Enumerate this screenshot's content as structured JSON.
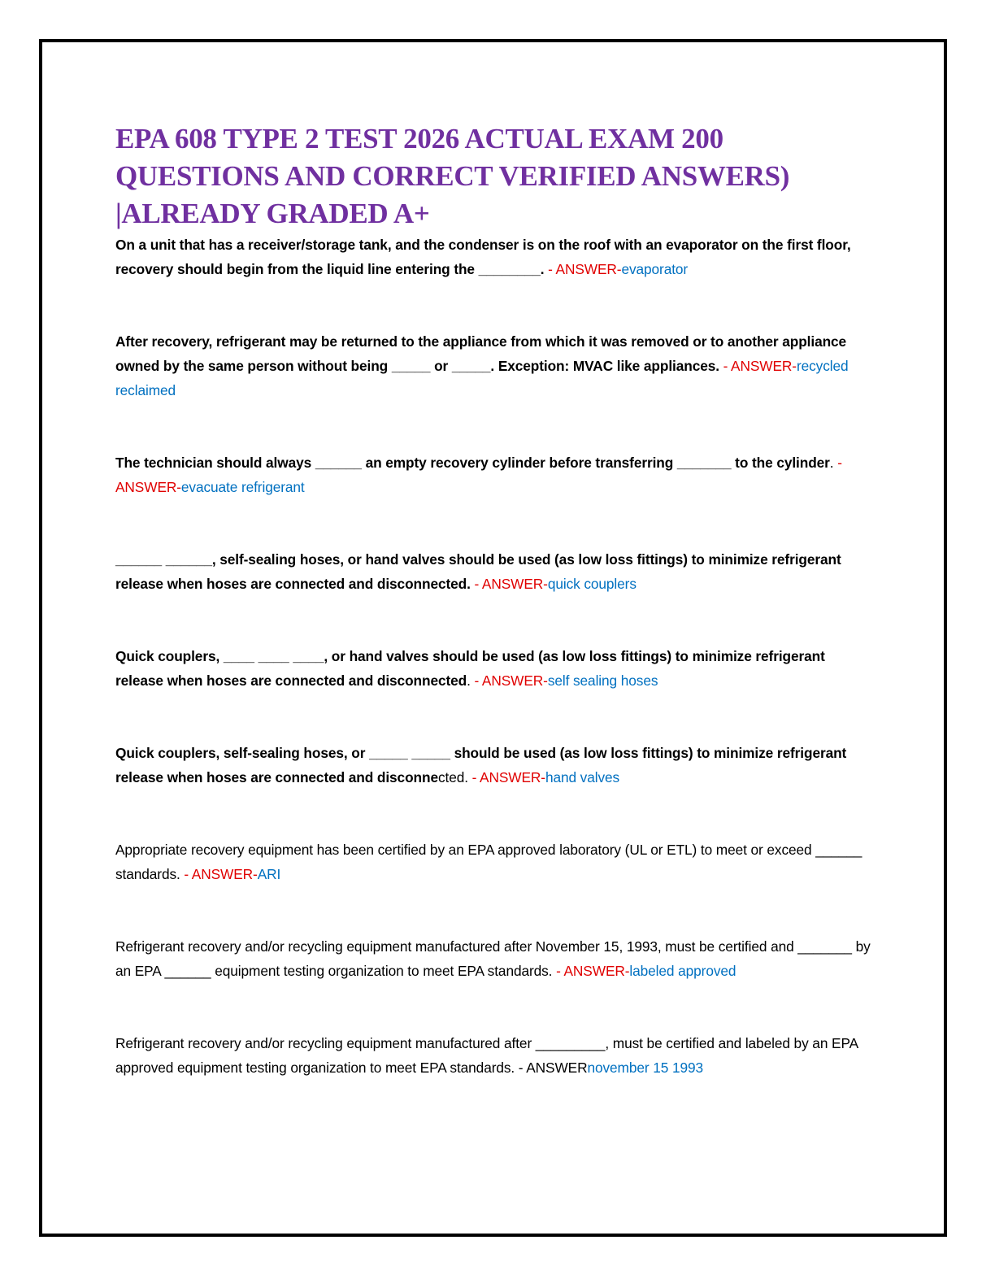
{
  "header": {
    "title_lines": [
      "EPA 608 TYPE 2 TEST 2026 ACTUAL EXAM 200",
      "QUESTIONS AND CORRECT VERIFIED ANSWERS)",
      "|ALREADY GRADED A+"
    ]
  },
  "questions": [
    {
      "segments": [
        {
          "style": "bold",
          "text": "On a unit that has a receiver/storage tank, and the condenser is on the roof with an evaporator on the first floor, recovery should begin from the liquid line entering the ________."
        },
        {
          "style": "marker",
          "text": " - ANSWER-"
        },
        {
          "style": "answer",
          "text": "evaporator"
        }
      ]
    },
    {
      "segments": [
        {
          "style": "bold",
          "text": "After recovery, refrigerant may be returned to the appliance from which it was removed or to another appliance owned by the same person without being _____ or _____. Exception: MVAC like appliances."
        },
        {
          "style": "marker",
          "text": " - ANSWER-"
        },
        {
          "style": "answer",
          "text": "recycled reclaimed"
        }
      ]
    },
    {
      "segments": [
        {
          "style": "bold",
          "text": "The technician should always ______ an empty recovery cylinder before transferring _______ to the cylinder"
        },
        {
          "style": "plain",
          "text": "."
        },
        {
          "style": "marker",
          "text": " - ANSWER-"
        },
        {
          "style": "answer",
          "text": "evacuate refrigerant"
        }
      ]
    },
    {
      "segments": [
        {
          "style": "bold",
          "text": "______ ______, self-sealing hoses, or hand valves should be used (as low loss fittings) to minimize refrigerant release when hoses are connected and disconnected."
        },
        {
          "style": "marker",
          "text": " - ANSWER-"
        },
        {
          "style": "answer",
          "text": "quick couplers"
        }
      ]
    },
    {
      "segments": [
        {
          "style": "bold",
          "text": "Quick couplers, ____ ____ ____, or hand valves should be used (as low loss fittings) to minimize refrigerant release when hoses are connected and disconnected"
        },
        {
          "style": "plain",
          "text": "."
        },
        {
          "style": "marker",
          "text": " - ANSWER-"
        },
        {
          "style": "answer",
          "text": "self sealing hoses"
        }
      ]
    },
    {
      "segments": [
        {
          "style": "bold",
          "text": "Quick couplers, self-sealing hoses, or _____ _____ should be used (as low loss fittings) to minimize refrigerant release when hoses are connected and disconne"
        },
        {
          "style": "plain",
          "text": "cted."
        },
        {
          "style": "marker",
          "text": " - ANSWER-"
        },
        {
          "style": "answer",
          "text": "hand valves"
        }
      ]
    },
    {
      "segments": [
        {
          "style": "plain",
          "text": "Appropriate recovery equipment has been certified by an EPA approved laboratory (UL or ETL) to meet or exceed ______ standards."
        },
        {
          "style": "marker",
          "text": " - ANSWER-"
        },
        {
          "style": "answer",
          "text": "ARI"
        }
      ]
    },
    {
      "segments": [
        {
          "style": "plain",
          "text": "Refrigerant recovery and/or recycling equipment manufactured after November 15, 1993, must be certified and _______ by an EPA ______ equipment testing organization to meet EPA standards."
        },
        {
          "style": "marker",
          "text": " - ANSWER-"
        },
        {
          "style": "answer",
          "text": "labeled approved"
        }
      ]
    },
    {
      "segments": [
        {
          "style": "plain",
          "text": "Refrigerant recovery and/or recycling equipment manufactured after _________, must be certified and labeled by an EPA approved equipment testing organization to meet EPA standards. - ANSWER"
        },
        {
          "style": "answer",
          "text": "november 15 1993"
        }
      ]
    }
  ]
}
